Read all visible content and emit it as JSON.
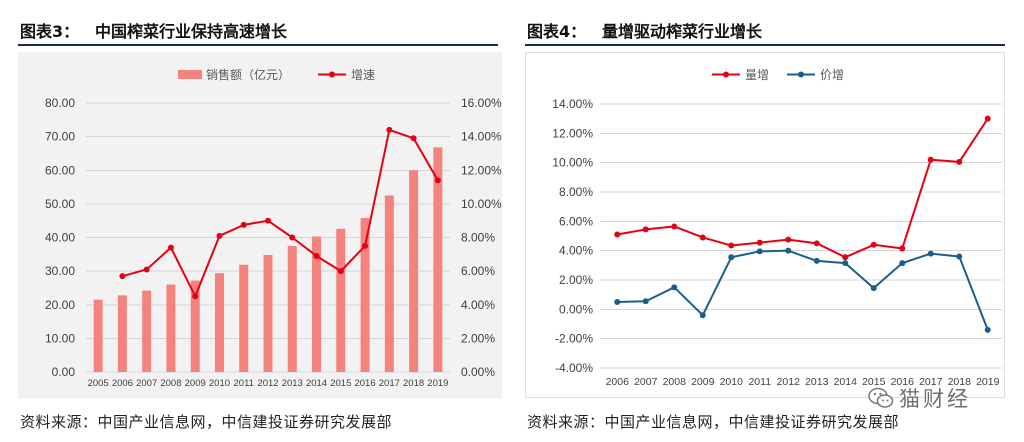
{
  "figures": [
    {
      "label": "图表3：",
      "source": "资料来源：中国产业信息网，中信建投证券研究发展部"
    },
    {
      "label": "图表4：",
      "source": "资料来源：中国产业信息网，中信建投证券研究发展部"
    }
  ],
  "watermark": {
    "text": "猫财经",
    "icon": "wechat-icon"
  },
  "chart_data": [
    {
      "type": "bar",
      "title": "中国榨菜行业保持高速增长",
      "categories": [
        "2005",
        "2006",
        "2007",
        "2008",
        "2009",
        "2010",
        "2011",
        "2012",
        "2013",
        "2014",
        "2015",
        "2016",
        "2017",
        "2018",
        "2019"
      ],
      "series": [
        {
          "name": "销售额（亿元）",
          "type": "bar",
          "color": "#f4837d",
          "values": [
            21.5,
            22.8,
            24.2,
            26.0,
            27.2,
            29.4,
            31.9,
            34.8,
            37.5,
            40.3,
            42.6,
            45.8,
            52.5,
            60.0,
            66.8
          ]
        },
        {
          "name": "增速",
          "type": "line",
          "secondary_axis": true,
          "color": "#e60012",
          "values": [
            null,
            5.7,
            6.1,
            7.4,
            4.5,
            8.1,
            8.75,
            9.0,
            8.0,
            6.9,
            6.0,
            7.5,
            14.4,
            13.9,
            11.4
          ]
        }
      ],
      "ylim_left": [
        0,
        80
      ],
      "yticks_left": [
        "0.00",
        "10.00",
        "20.00",
        "30.00",
        "40.00",
        "50.00",
        "60.00",
        "70.00",
        "80.00"
      ],
      "ylim_right": [
        0,
        16
      ],
      "yticks_right": [
        "0.00%",
        "2.00%",
        "4.00%",
        "6.00%",
        "8.00%",
        "10.00%",
        "12.00%",
        "14.00%",
        "16.00%"
      ],
      "grid": true,
      "legend": "top-center"
    },
    {
      "type": "line",
      "title": "量增驱动榨菜行业增长",
      "categories": [
        "2006",
        "2007",
        "2008",
        "2009",
        "2010",
        "2011",
        "2012",
        "2013",
        "2014",
        "2015",
        "2016",
        "2017",
        "2018",
        "2019"
      ],
      "series": [
        {
          "name": "量增",
          "color": "#e60012",
          "values": [
            5.1,
            5.45,
            5.65,
            4.9,
            4.35,
            4.55,
            4.75,
            4.5,
            3.55,
            4.4,
            4.15,
            10.2,
            10.05,
            13.0
          ]
        },
        {
          "name": "价增",
          "color": "#1d5d8a",
          "values": [
            0.5,
            0.55,
            1.5,
            -0.4,
            3.55,
            3.95,
            4.0,
            3.3,
            3.15,
            1.45,
            3.15,
            3.8,
            3.6,
            -1.4
          ]
        }
      ],
      "ylim": [
        -4,
        14
      ],
      "yticks": [
        "-4.00%",
        "-2.00%",
        "0.00%",
        "2.00%",
        "4.00%",
        "6.00%",
        "8.00%",
        "10.00%",
        "12.00%",
        "14.00%"
      ],
      "grid": true,
      "legend": "top-center"
    }
  ]
}
